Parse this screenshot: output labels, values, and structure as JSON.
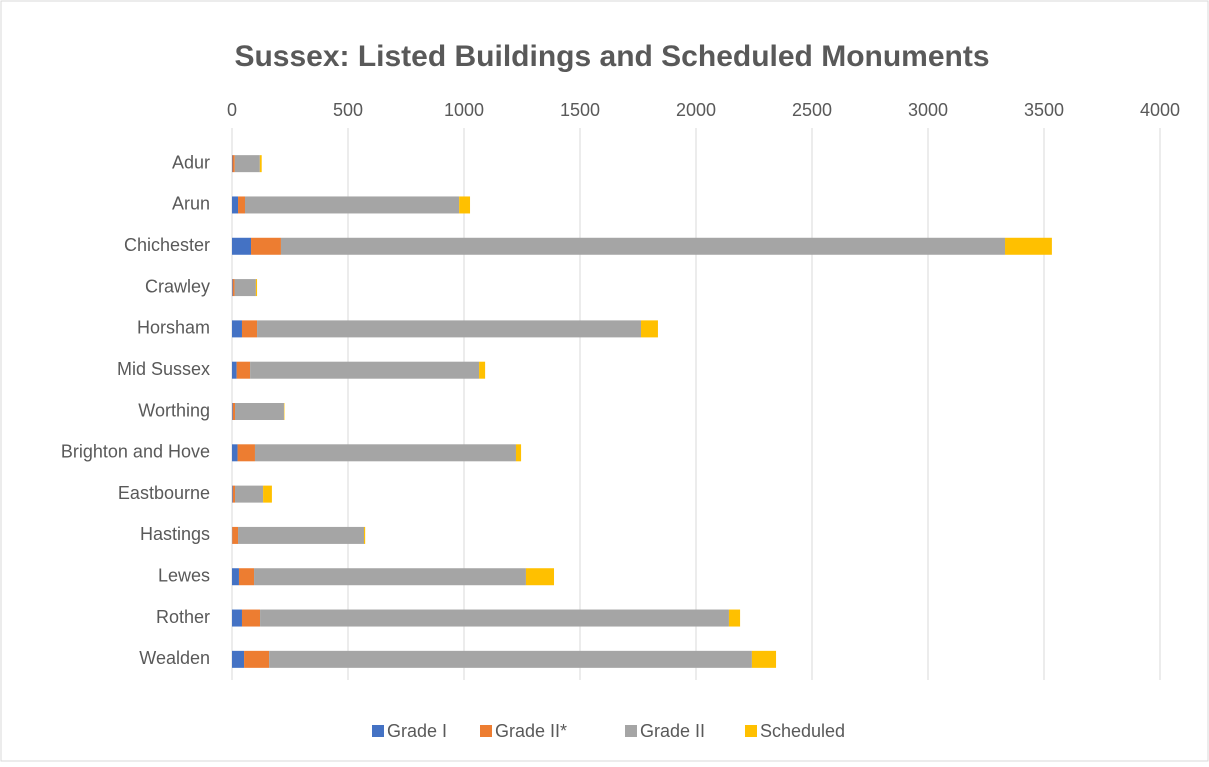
{
  "chart_data": {
    "type": "stacked_bar_horizontal",
    "title": "Sussex: Listed Buildings and Scheduled Monuments",
    "categories": [
      "Adur",
      "Arun",
      "Chichester",
      "Crawley",
      "Horsham",
      "Mid Sussex",
      "Worthing",
      "Brighton and Hove",
      "Eastbourne",
      "Hastings",
      "Lewes",
      "Rother",
      "Wealden"
    ],
    "series": [
      {
        "name": "Grade I",
        "color": "#4472c4",
        "values": [
          2,
          26,
          82,
          3,
          43,
          20,
          3,
          24,
          3,
          1,
          30,
          43,
          52
        ]
      },
      {
        "name": "Grade II*",
        "color": "#ed7d31",
        "values": [
          10,
          30,
          129,
          8,
          65,
          58,
          10,
          75,
          10,
          25,
          65,
          78,
          108
        ]
      },
      {
        "name": "Grade II",
        "color": "#a5a5a5",
        "values": [
          108,
          923,
          3121,
          92,
          1655,
          987,
          211,
          1125,
          121,
          543,
          1172,
          2021,
          2081
        ]
      },
      {
        "name": "Scheduled",
        "color": "#ffc000",
        "values": [
          8,
          47,
          202,
          5,
          73,
          26,
          2,
          22,
          38,
          5,
          121,
          48,
          104
        ]
      }
    ],
    "xlim": [
      0,
      4000
    ],
    "xticks": [
      0,
      500,
      1000,
      1500,
      2000,
      2500,
      3000,
      3500,
      4000
    ],
    "grid": true,
    "legend": "bottom"
  }
}
